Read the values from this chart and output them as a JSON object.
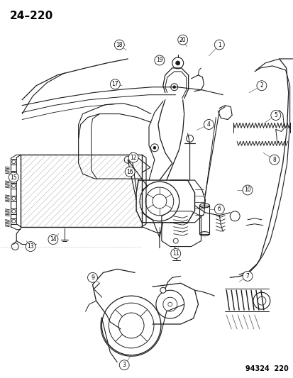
{
  "page_label": "24–220",
  "catalog_number": "94324  220",
  "bg": "#ffffff",
  "lc": "#1a1a1a",
  "gray": "#888888",
  "title_fs": 11,
  "label_fs": 5.5,
  "cat_fs": 7
}
